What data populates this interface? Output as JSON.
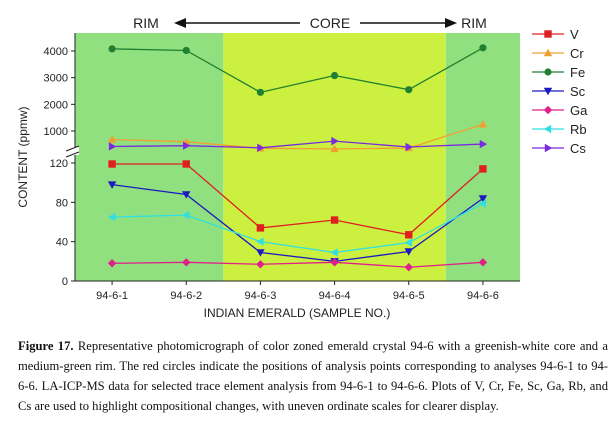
{
  "chart_data": {
    "type": "line",
    "ylabel": "CONTENT (ppmw)",
    "xlabel": "INDIAN EMERALD (SAMPLE NO.)",
    "categories": [
      "94-6-1",
      "94-6-2",
      "94-6-3",
      "94-6-4",
      "94-6-5",
      "94-6-6"
    ],
    "zones": [
      {
        "label": "RIM",
        "from": 0,
        "to": 1,
        "color": "#90e080"
      },
      {
        "label": "CORE",
        "from": 2,
        "to": 4,
        "color": "#ccf040"
      },
      {
        "label": "RIM",
        "from": 5,
        "to": 5,
        "color": "#90e080"
      }
    ],
    "upper_axis": {
      "ticks": [
        1000,
        2000,
        3000,
        4000
      ],
      "range": [
        0,
        4300
      ]
    },
    "lower_axis": {
      "ticks": [
        0,
        40,
        80,
        120
      ],
      "range": [
        0,
        130
      ]
    },
    "series": [
      {
        "name": "V",
        "color": "#e02020",
        "marker": "square",
        "axis": "lower",
        "values": [
          119,
          119,
          54,
          62,
          47,
          114
        ]
      },
      {
        "name": "Cr",
        "color": "#f0a030",
        "marker": "triangle-up",
        "axis": "upper",
        "values": [
          680,
          600,
          350,
          330,
          360,
          1250
        ]
      },
      {
        "name": "Fe",
        "color": "#208030",
        "marker": "circle",
        "axis": "upper",
        "values": [
          4080,
          4020,
          2450,
          3080,
          2550,
          4120
        ]
      },
      {
        "name": "Sc",
        "color": "#1a1ac0",
        "marker": "triangle-down",
        "axis": "lower",
        "values": [
          98,
          88,
          29,
          20,
          30,
          84
        ]
      },
      {
        "name": "Ga",
        "color": "#e0208a",
        "marker": "diamond",
        "axis": "lower",
        "values": [
          18,
          19,
          17,
          19,
          14,
          19
        ]
      },
      {
        "name": "Rb",
        "color": "#30e0e0",
        "marker": "triangle-left",
        "axis": "lower",
        "values": [
          65,
          67,
          40,
          29,
          39,
          79
        ]
      },
      {
        "name": "Cs",
        "color": "#7a2ae0",
        "marker": "triangle-right",
        "axis": "upper",
        "values": [
          420,
          450,
          370,
          620,
          400,
          510
        ]
      }
    ]
  },
  "caption": {
    "label": "Figure 17.",
    "text": " Representative photomicrograph of color zoned emerald crystal 94-6 with a greenish-white core and a medium-green rim. The red circles indicate the positions of analysis points corresponding to analyses 94-6-1 to 94-6-6. LA-ICP-MS data for selected trace element analysis from 94-6-1 to 94-6-6. Plots of V, Cr, Fe, Sc, Ga, Rb, and Cs are used to highlight compositional changes, with uneven ordinate scales for clearer display."
  }
}
